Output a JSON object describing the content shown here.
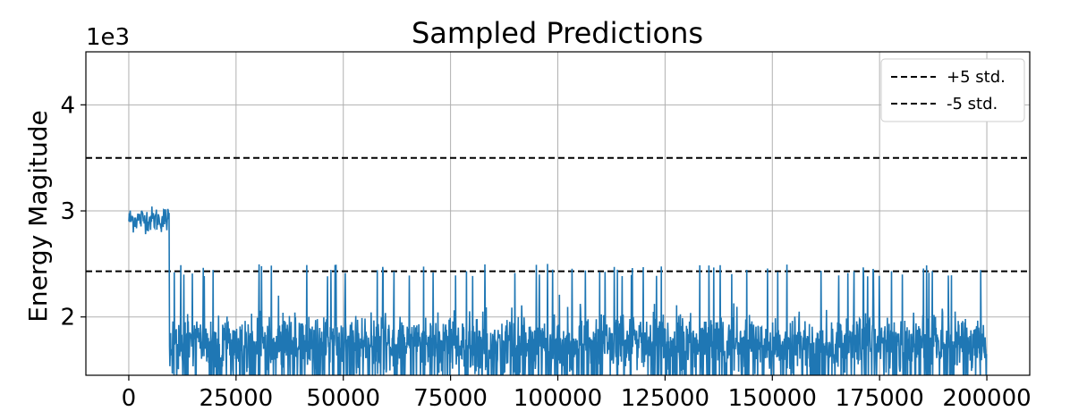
{
  "chart_data": {
    "type": "line",
    "title": "Sampled Predictions",
    "xlabel": "",
    "ylabel": "Energy Magitude",
    "y_offset_text": "1e3",
    "xlim": [
      -10000,
      210000
    ],
    "ylim": [
      1.45,
      4.5
    ],
    "x_ticks": [
      0,
      25000,
      50000,
      75000,
      100000,
      125000,
      150000,
      175000,
      200000
    ],
    "x_tick_labels": [
      "0",
      "25000",
      "50000",
      "75000",
      "100000",
      "125000",
      "150000",
      "175000",
      "200000"
    ],
    "y_ticks": [
      2,
      3,
      4
    ],
    "y_tick_labels": [
      "2",
      "3",
      "4"
    ],
    "grid": true,
    "legend_position": "top-right",
    "threshold_lines": [
      {
        "label": "+5 std.",
        "y": 3.5,
        "style": "dashed",
        "color": "#000000"
      },
      {
        "label": "-5 std.",
        "y": 2.43,
        "style": "dashed",
        "color": "#000000"
      }
    ],
    "series": [
      {
        "color": "#1f77b4",
        "x_start": 0,
        "x_end": 200000,
        "segments": [
          {
            "x_from": 0,
            "x_to": 9500,
            "mean": 2.92,
            "spread": 0.1,
            "max": 3.15,
            "min": 2.78
          },
          {
            "x_from": 9500,
            "x_to": 200000,
            "mean": 1.75,
            "spread": 0.25,
            "max": 2.5,
            "min": 1.45
          }
        ]
      }
    ]
  }
}
